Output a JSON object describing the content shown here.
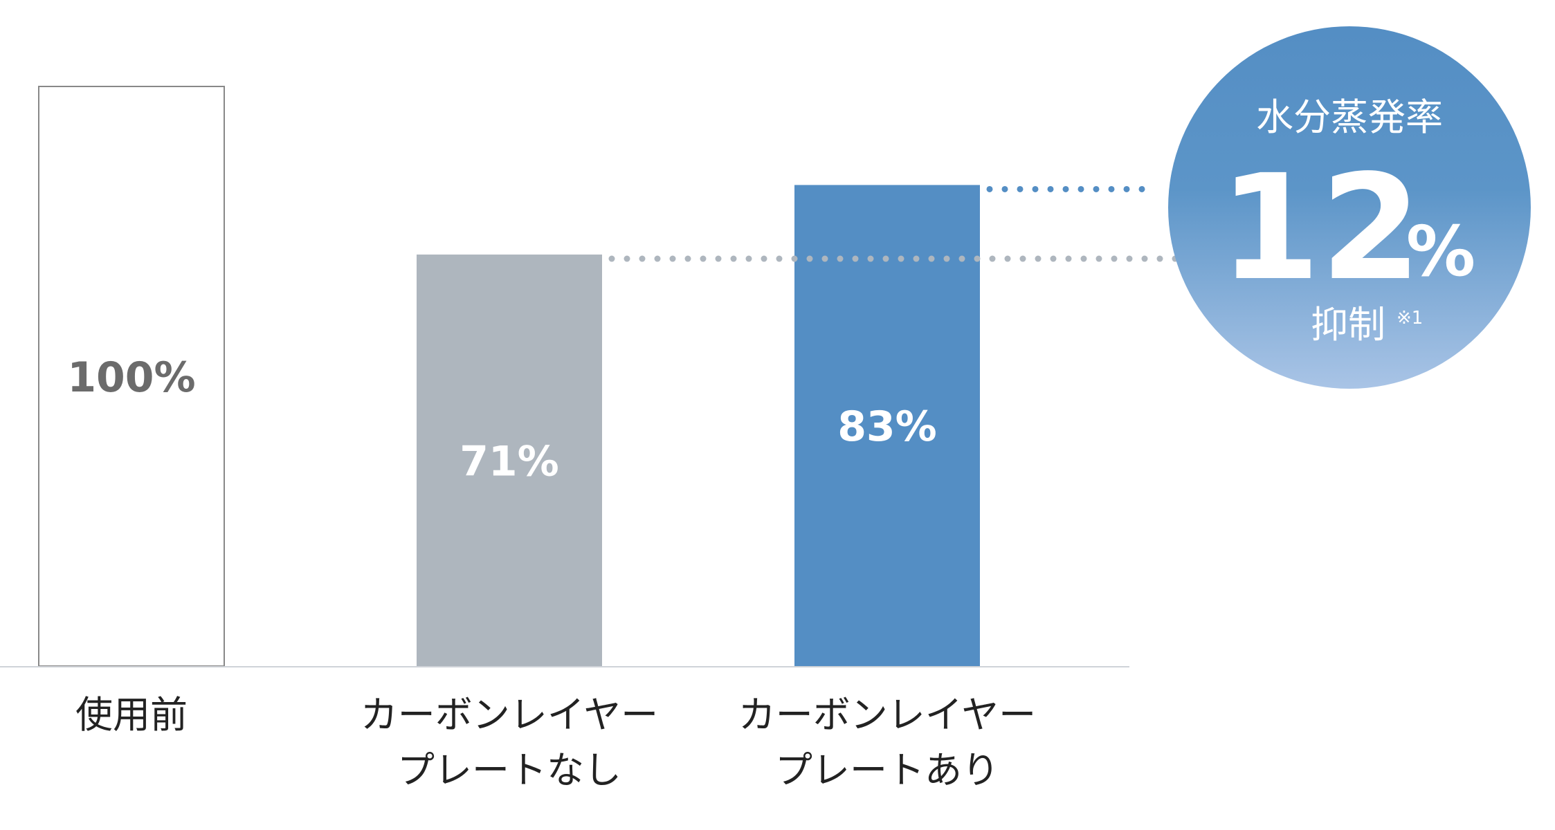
{
  "chart_data": {
    "type": "bar",
    "categories": [
      [
        "使用前"
      ],
      [
        "カーボンレイヤー",
        "プレートなし"
      ],
      [
        "カーボンレイヤー",
        "プレートあり"
      ]
    ],
    "values": [
      100,
      71,
      83
    ],
    "value_labels": [
      "100%",
      "71%",
      "83%"
    ],
    "ylim": [
      0,
      100
    ],
    "grid": false,
    "legend": "none",
    "xlabel": "",
    "ylabel": "",
    "colors": {
      "bar_outline": "#888888",
      "bar_fill_before": "#ffffff",
      "bar_fill_without": "#aeb6be",
      "bar_fill_with": "#548ec4",
      "label_dark": "#6b6b6b",
      "label_light": "#ffffff",
      "dots_without": "#aeb6be",
      "dots_with": "#548ec4",
      "axis": "#cfd3d8",
      "badge_top": "#548ec4",
      "badge_bottom": "#a9c4e6"
    },
    "annotation": {
      "title": "水分蒸発率",
      "number": "12",
      "unit": "%",
      "subtitle": "抑制",
      "note": "※1"
    }
  }
}
